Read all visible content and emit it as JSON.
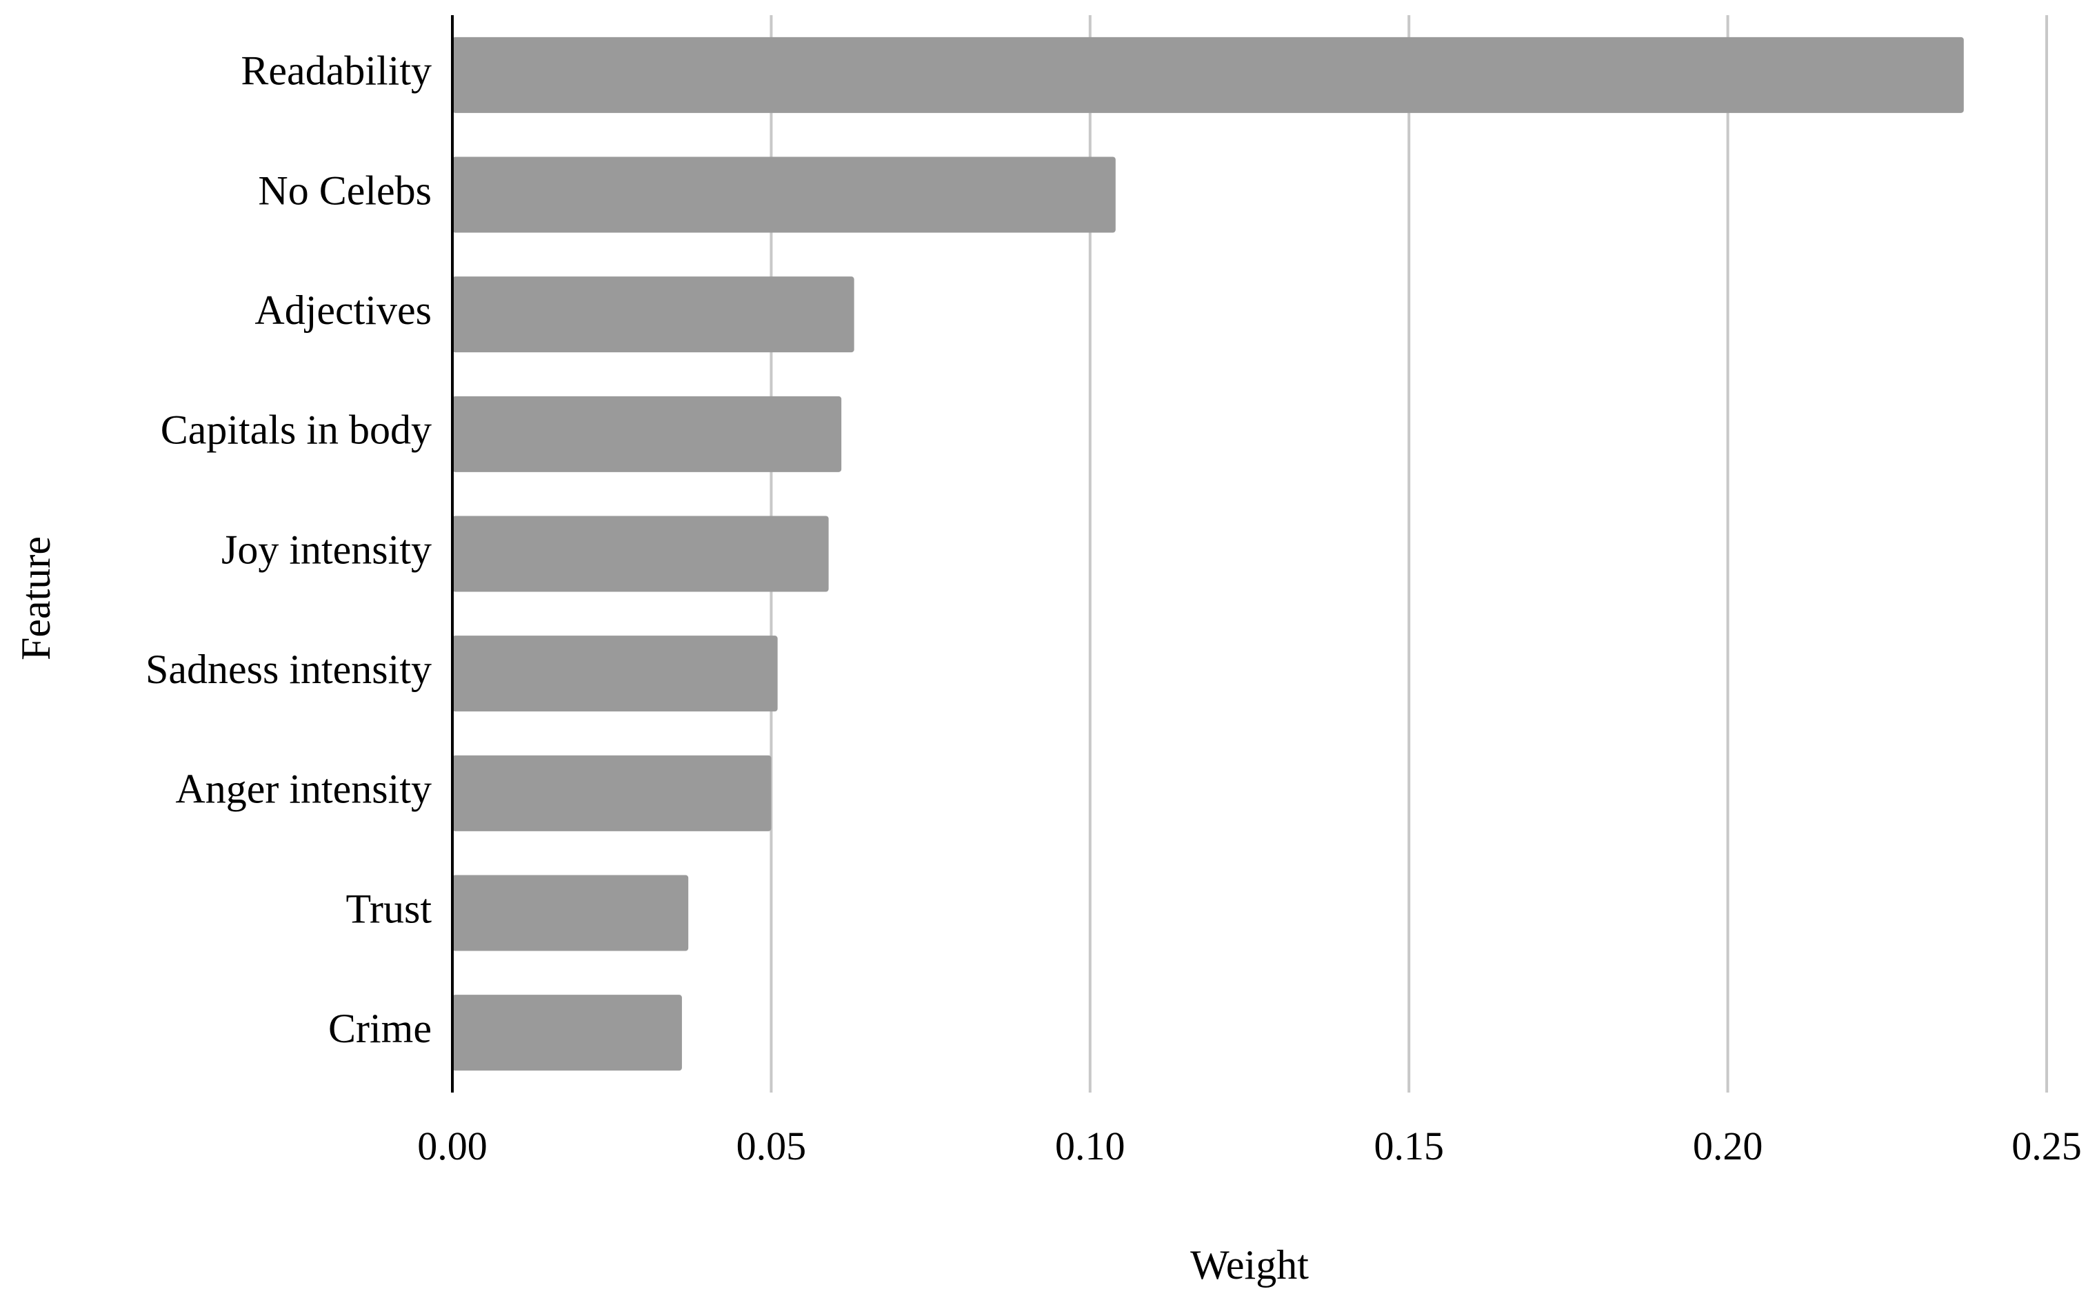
{
  "chart_data": {
    "type": "bar",
    "orientation": "horizontal",
    "title": "",
    "xlabel": "Weight",
    "ylabel": "Feature",
    "categories": [
      "Readability",
      "No Celebs",
      "Adjectives",
      "Capitals in body",
      "Joy intensity",
      "Sadness intensity",
      "Anger intensity",
      "Trust",
      "Crime"
    ],
    "values": [
      0.237,
      0.104,
      0.063,
      0.061,
      0.059,
      0.051,
      0.05,
      0.037,
      0.036
    ],
    "xlim": [
      0,
      0.25
    ],
    "xticks": [
      "0.00",
      "0.05",
      "0.10",
      "0.15",
      "0.20",
      "0.25"
    ],
    "xtick_values": [
      0,
      0.05,
      0.1,
      0.15,
      0.2,
      0.25
    ],
    "grid": "vertical",
    "legend": "none",
    "colors": {
      "bar": "#9a9a9a",
      "grid": "#c8c8c8",
      "axis": "#000000"
    }
  }
}
